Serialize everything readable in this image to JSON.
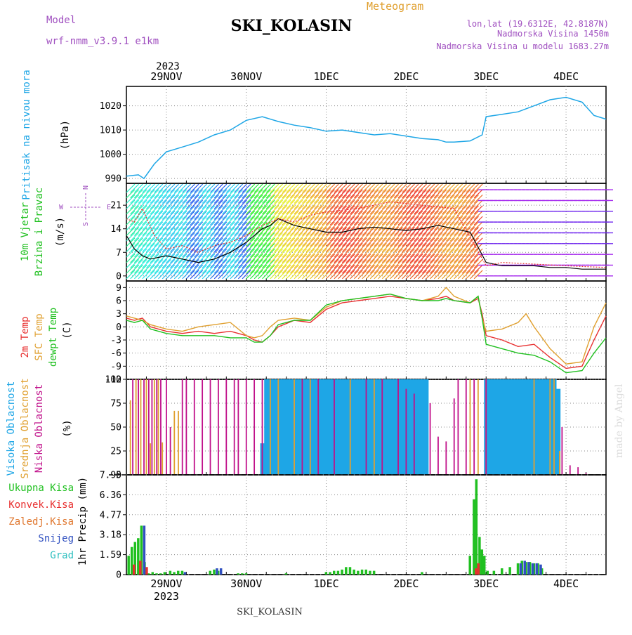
{
  "header": {
    "title": "SKI_KOLASIN",
    "model_label": "Model",
    "model_name": "wrf-nmm_v3.9.1 e1km",
    "meteogram_label": "Meteogram",
    "location": "lon,lat (19.6312E, 42.8187N)",
    "altitude": "Nadmorska Visina 1450m",
    "model_altitude": "Nadmorska Visina u modelu 1683.27m",
    "year": "2023",
    "footer_station": "SKI_KOLASIN",
    "watermark": "made by Angel"
  },
  "colors": {
    "pressure": "#1ea6e6",
    "wind_speed": "#000000",
    "gust": "#e83030",
    "t2m": "#e83030",
    "sfc": "#e0a030",
    "dewpt": "#20c020",
    "cloud_high": "#1ea6e6",
    "cloud_mid": "#e0a030",
    "cloud_low": "#c0108a",
    "precip_total": "#20c020",
    "precip_conv": "#e83030",
    "precip_frz": "#e07830",
    "precip_snow": "#3050c0",
    "precip_grad": "#30c0c0",
    "model_text": "#a050c0"
  },
  "chart_data": [
    {
      "type": "line",
      "panel": "pressure",
      "ylabel_colored": "Pritisak na nivou mora",
      "ylabel_unit": "(hPa)",
      "x_tick_labels": [
        "29NOV",
        "30NOV",
        "1DEC",
        "2DEC",
        "3DEC",
        "4DEC"
      ],
      "x_range": [
        28.5,
        34.5
      ],
      "ylim": [
        988,
        1028
      ],
      "y_ticks": [
        990,
        1000,
        1010,
        1020
      ],
      "grid": true,
      "series": [
        {
          "key": "pressure",
          "color_key": "pressure",
          "x": [
            28.5,
            28.65,
            28.72,
            28.85,
            29.0,
            29.2,
            29.4,
            29.6,
            29.8,
            30.0,
            30.2,
            30.4,
            30.6,
            30.8,
            31.0,
            31.2,
            31.4,
            31.6,
            31.8,
            32.0,
            32.2,
            32.4,
            32.5,
            32.6,
            32.8,
            32.95,
            33.0,
            33.2,
            33.4,
            33.6,
            33.8,
            34.0,
            34.2,
            34.35,
            34.5
          ],
          "values": [
            991,
            991.5,
            990,
            996,
            1001,
            1003,
            1005,
            1008,
            1010,
            1014,
            1015.5,
            1013.5,
            1012,
            1011,
            1009.5,
            1010,
            1009,
            1008,
            1008.5,
            1007.5,
            1006.5,
            1006,
            1005,
            1005,
            1005.5,
            1008,
            1015.5,
            1016.5,
            1017.5,
            1020,
            1022.5,
            1023.5,
            1021.5,
            1016,
            1014.5
          ]
        }
      ]
    },
    {
      "type": "line",
      "panel": "wind",
      "ylabel_colored_1": "10m Vjetar",
      "ylabel_colored_2": "Brzina i Pravac",
      "ylabel_unit": "(m/s)",
      "compass_w": "W",
      "compass_e": "E",
      "compass_s": "S",
      "compass_n": "N",
      "x_range": [
        28.5,
        34.5
      ],
      "ylim": [
        -1.5,
        27.5
      ],
      "y_ticks": [
        0,
        7,
        14,
        21
      ],
      "grid": true,
      "series": [
        {
          "key": "speed",
          "color_key": "wind_speed",
          "x": [
            28.5,
            28.6,
            28.7,
            28.8,
            29.0,
            29.2,
            29.4,
            29.6,
            29.8,
            30.0,
            30.2,
            30.3,
            30.4,
            30.6,
            30.8,
            31.0,
            31.2,
            31.4,
            31.6,
            31.8,
            32.0,
            32.2,
            32.4,
            32.6,
            32.8,
            33.0,
            33.2,
            33.4,
            33.6,
            33.8,
            34.0,
            34.2,
            34.5
          ],
          "values": [
            12,
            8,
            6,
            5,
            6,
            5,
            4,
            5,
            7,
            10,
            14,
            15,
            17,
            15,
            14,
            13,
            13,
            14,
            14.5,
            14,
            13.5,
            14,
            15,
            14,
            13,
            4,
            3,
            3,
            3,
            2.5,
            2.5,
            2,
            2
          ]
        },
        {
          "key": "gust",
          "color_key": "gust",
          "x": [
            28.5,
            28.6,
            28.7,
            28.85,
            29.0,
            29.2,
            29.4,
            29.6,
            29.8,
            30.0,
            30.2,
            30.4,
            30.6,
            30.8,
            31.0,
            31.4,
            31.8,
            32.2,
            32.6,
            33.0,
            33.2,
            33.6,
            34.0,
            34.5
          ],
          "values": [
            17,
            16,
            20,
            12,
            8,
            9,
            7,
            9,
            10,
            12,
            15,
            17,
            16,
            18,
            19,
            20,
            22,
            21,
            20,
            3,
            4,
            3.5,
            3,
            2.5
          ]
        }
      ]
    },
    {
      "type": "line",
      "panel": "temperature",
      "ylabel_t2m": "2m Temp",
      "ylabel_sfc": "SFC Temp",
      "ylabel_dewpt": "dewpt Temp",
      "ylabel_unit": "(C)",
      "x_range": [
        28.5,
        34.5
      ],
      "ylim": [
        -12,
        10.5
      ],
      "y_ticks": [
        -12,
        -9,
        -6,
        -3,
        0,
        3,
        6,
        9
      ],
      "grid": true,
      "series": [
        {
          "key": "t2m",
          "color_key": "t2m",
          "x": [
            28.5,
            28.6,
            28.7,
            28.8,
            29.0,
            29.2,
            29.4,
            29.6,
            29.8,
            30.0,
            30.1,
            30.2,
            30.3,
            30.4,
            30.6,
            30.8,
            31.0,
            31.2,
            31.4,
            31.6,
            31.8,
            32.0,
            32.2,
            32.4,
            32.5,
            32.6,
            32.8,
            32.9,
            32.95,
            33.0,
            33.2,
            33.4,
            33.6,
            33.8,
            34.0,
            34.2,
            34.35,
            34.5
          ],
          "values": [
            2,
            1.5,
            2,
            0,
            -1,
            -1.5,
            -1,
            -1.5,
            -1,
            -2,
            -3,
            -3.5,
            -2,
            0,
            1.5,
            1,
            4,
            5.5,
            6,
            6.5,
            7,
            6.5,
            6,
            6.5,
            7,
            6,
            5.5,
            6.5,
            3,
            -2,
            -3,
            -4.5,
            -4,
            -7,
            -9.5,
            -9,
            -3,
            2.5
          ]
        },
        {
          "key": "sfc",
          "color_key": "sfc",
          "x": [
            28.5,
            28.6,
            28.7,
            28.8,
            29.0,
            29.2,
            29.4,
            29.6,
            29.8,
            30.0,
            30.1,
            30.2,
            30.3,
            30.4,
            30.6,
            30.8,
            31.0,
            31.2,
            31.4,
            31.6,
            31.8,
            32.0,
            32.2,
            32.4,
            32.5,
            32.6,
            32.8,
            32.9,
            32.95,
            33.0,
            33.2,
            33.4,
            33.5,
            33.6,
            33.8,
            34.0,
            34.2,
            34.35,
            34.5
          ],
          "values": [
            2.5,
            2,
            1.5,
            0.5,
            -0.5,
            -1,
            0,
            0.5,
            1,
            -2,
            -2.5,
            -2,
            0,
            1.5,
            2,
            1.5,
            4.5,
            6,
            6.5,
            7,
            7.5,
            6.5,
            6,
            7,
            9,
            7,
            5.5,
            7,
            2,
            -1,
            -0.5,
            1,
            3,
            0,
            -5,
            -8.5,
            -8,
            0,
            5.5
          ]
        },
        {
          "key": "dewpt",
          "color_key": "dewpt",
          "x": [
            28.5,
            28.6,
            28.7,
            28.8,
            29.0,
            29.2,
            29.4,
            29.6,
            29.8,
            30.0,
            30.1,
            30.2,
            30.3,
            30.4,
            30.6,
            30.8,
            31.0,
            31.2,
            31.4,
            31.6,
            31.8,
            32.0,
            32.2,
            32.4,
            32.5,
            32.6,
            32.8,
            32.9,
            32.95,
            33.0,
            33.2,
            33.4,
            33.6,
            33.8,
            34.0,
            34.2,
            34.35,
            34.5
          ],
          "values": [
            1.5,
            1,
            1.5,
            -0.5,
            -1.5,
            -2,
            -2,
            -2,
            -2.5,
            -2.5,
            -3.5,
            -3.5,
            -2,
            0.5,
            1.5,
            1.5,
            5,
            6,
            6.5,
            7,
            7.5,
            6.5,
            6,
            6,
            6.5,
            6,
            5.5,
            7,
            2,
            -4,
            -5,
            -6,
            -6.5,
            -8,
            -10.5,
            -10,
            -6,
            -2.5
          ]
        }
      ]
    },
    {
      "type": "bar",
      "panel": "clouds",
      "ylabel_high": "Visoka Oblacnost",
      "ylabel_mid": "Srednja Oblacnost",
      "ylabel_low": "Niska Oblacnost",
      "ylabel_unit": "(%)",
      "x_range": [
        28.5,
        34.5
      ],
      "ylim": [
        0,
        100
      ],
      "y_ticks": [
        0,
        25,
        50,
        75,
        100
      ],
      "grid": true,
      "series": [
        {
          "key": "high",
          "color_key": "cloud_high",
          "x": [
            30.2,
            30.25,
            30.3,
            30.35,
            30.4,
            30.45,
            30.5,
            30.55,
            30.6,
            30.65,
            30.7,
            30.75,
            30.8,
            30.85,
            30.9,
            30.95,
            31.0,
            31.05,
            31.1,
            31.15,
            31.2,
            31.25,
            31.3,
            31.35,
            31.4,
            31.45,
            31.5,
            31.55,
            31.6,
            31.65,
            31.7,
            31.75,
            31.8,
            31.85,
            31.9,
            31.95,
            32.0,
            32.05,
            32.1,
            32.15,
            32.2,
            32.25,
            33.0,
            33.05,
            33.1,
            33.15,
            33.2,
            33.25,
            33.3,
            33.35,
            33.4,
            33.45,
            33.5,
            33.55,
            33.6,
            33.65,
            33.7,
            33.75,
            33.8,
            33.85,
            33.9
          ],
          "values": [
            33,
            100,
            100,
            100,
            100,
            100,
            100,
            100,
            100,
            100,
            100,
            100,
            100,
            100,
            100,
            100,
            100,
            100,
            100,
            100,
            100,
            100,
            100,
            100,
            100,
            100,
            100,
            100,
            100,
            100,
            100,
            100,
            100,
            100,
            100,
            100,
            100,
            100,
            100,
            100,
            100,
            100,
            100,
            100,
            100,
            100,
            100,
            100,
            100,
            100,
            100,
            100,
            100,
            100,
            100,
            100,
            100,
            100,
            100,
            100,
            90
          ]
        },
        {
          "key": "mid",
          "color_key": "cloud_mid",
          "x": [
            28.55,
            28.62,
            28.68,
            28.75,
            28.8,
            28.85,
            28.9,
            28.95,
            29.1,
            29.15,
            30.3,
            30.4,
            30.6,
            30.8,
            31.3,
            31.6,
            32.8,
            32.9,
            33.0,
            33.6,
            33.8,
            33.85,
            33.92
          ],
          "values": [
            78,
            100,
            100,
            100,
            33,
            100,
            100,
            34,
            67,
            67,
            100,
            100,
            100,
            100,
            100,
            100,
            100,
            100,
            100,
            100,
            100,
            100,
            25
          ]
        },
        {
          "key": "low",
          "color_key": "cloud_low",
          "x": [
            28.58,
            28.65,
            28.72,
            28.78,
            28.82,
            28.88,
            28.93,
            29.0,
            29.05,
            29.2,
            29.25,
            29.35,
            29.45,
            29.55,
            29.65,
            29.75,
            29.85,
            29.9,
            30.0,
            30.1,
            30.2,
            30.7,
            30.9,
            31.1,
            31.5,
            31.7,
            31.9,
            32.0,
            32.1,
            32.3,
            32.4,
            32.5,
            32.6,
            32.65,
            32.75,
            32.85,
            33.0,
            33.95,
            34.05,
            34.15,
            34.25
          ],
          "values": [
            100,
            100,
            100,
            100,
            100,
            100,
            100,
            100,
            50,
            100,
            100,
            100,
            100,
            100,
            100,
            100,
            100,
            100,
            100,
            100,
            100,
            100,
            100,
            100,
            100,
            100,
            100,
            90,
            85,
            75,
            40,
            35,
            80,
            100,
            100,
            100,
            100,
            50,
            10,
            8,
            2
          ]
        }
      ]
    },
    {
      "type": "bar",
      "panel": "precip",
      "legend": [
        "Ukupna Kisa",
        "Konvek.Kisa",
        "Zaledj.Kisa",
        "Snijeg",
        "Grad"
      ],
      "ylabel_unit": "1hr Precip (mm)",
      "x_tick_labels": [
        "29NOV",
        "30NOV",
        "1DEC",
        "2DEC",
        "3DEC",
        "4DEC"
      ],
      "year_label": "2023",
      "x_range": [
        28.5,
        34.5
      ],
      "ylim": [
        0,
        7.95
      ],
      "y_ticks": [
        0,
        1.59,
        3.18,
        4.77,
        6.36,
        7.95
      ],
      "grid": true,
      "series": [
        {
          "key": "total",
          "color_key": "precip_total",
          "x": [
            28.53,
            28.57,
            28.61,
            28.65,
            28.69,
            28.73,
            28.78,
            28.83,
            28.88,
            28.93,
            28.98,
            29.05,
            29.1,
            29.15,
            29.2,
            29.55,
            29.6,
            29.65,
            29.9,
            29.95,
            30.0,
            30.5,
            31.0,
            31.05,
            31.1,
            31.15,
            31.2,
            31.25,
            31.3,
            31.35,
            31.4,
            31.45,
            31.5,
            31.55,
            31.6,
            32.2,
            32.8,
            32.85,
            32.88,
            32.92,
            32.95,
            32.98,
            33.02,
            33.1,
            33.2,
            33.3,
            33.4,
            33.45,
            33.5,
            33.55,
            33.6,
            33.65,
            33.7
          ],
          "values": [
            1.5,
            2.2,
            2.6,
            2.9,
            3.9,
            1.0,
            0.1,
            0.2,
            0.1,
            0.1,
            0.2,
            0.3,
            0.2,
            0.3,
            0.3,
            0.3,
            0.4,
            0.3,
            0.1,
            0.1,
            0.1,
            0.1,
            0.2,
            0.2,
            0.3,
            0.3,
            0.4,
            0.6,
            0.6,
            0.4,
            0.3,
            0.4,
            0.4,
            0.3,
            0.3,
            0.2,
            1.5,
            6.0,
            7.6,
            3.0,
            2.0,
            1.5,
            0.3,
            0.3,
            0.5,
            0.6,
            0.9,
            1.1,
            1.0,
            1.0,
            0.9,
            0.9,
            0.5
          ]
        },
        {
          "key": "conv",
          "color_key": "precip_conv",
          "x": [
            28.57,
            28.65,
            28.73,
            32.85,
            32.88
          ],
          "values": [
            0.8,
            1.1,
            0.6,
            0.5,
            0.9
          ]
        },
        {
          "key": "snow",
          "color_key": "precip_snow",
          "x": [
            28.69,
            29.2,
            29.6,
            29.65,
            33.4,
            33.45,
            33.5,
            33.55,
            33.6,
            33.65
          ],
          "values": [
            3.9,
            0.2,
            0.5,
            0.5,
            0.9,
            1.1,
            1.0,
            0.9,
            0.9,
            0.8
          ]
        }
      ]
    }
  ]
}
